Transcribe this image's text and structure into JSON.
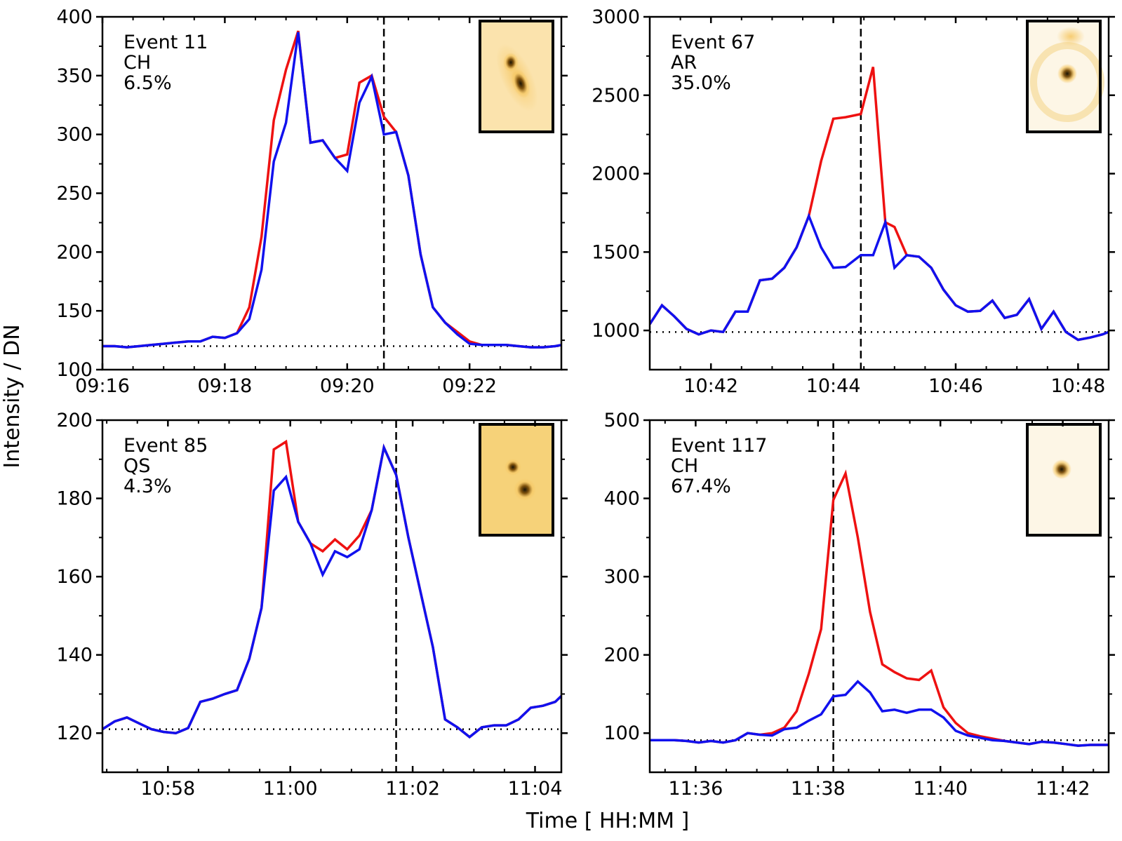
{
  "figure": {
    "ylabel": "Intensity / DN",
    "xlabel": "Time [ HH:MM ]"
  },
  "colors": {
    "red_series": "#ee1111",
    "blue_series": "#1111ee",
    "axis": "#000000",
    "inset_light": "#fdf6e6",
    "inset_mid": "#f6c865",
    "inset_dark": "#1a1204"
  },
  "chart_data": [
    {
      "type": "line",
      "annotation": [
        "Event 11",
        "CH",
        "6.5%"
      ],
      "xlim": [
        0,
        7.5
      ],
      "ylim": [
        100,
        400
      ],
      "xticks": [
        0,
        2,
        4,
        6
      ],
      "xtick_labels": [
        "09:16",
        "09:18",
        "09:20",
        "09:22"
      ],
      "yticks": [
        100,
        150,
        200,
        250,
        300,
        350,
        400
      ],
      "ytick_labels": [
        "100",
        "150",
        "200",
        "250",
        "300",
        "350",
        "400"
      ],
      "vline_x": 4.6,
      "baseline_y": 120,
      "inset": "elongated-double-blob",
      "series": [
        {
          "name": "red",
          "color": "#ee1111",
          "x": [
            0,
            0.2,
            0.4,
            0.6,
            0.8,
            1.0,
            1.2,
            1.4,
            1.6,
            1.8,
            2.0,
            2.2,
            2.4,
            2.6,
            2.8,
            3.0,
            3.2,
            3.4,
            3.6,
            3.8,
            4.0,
            4.2,
            4.4,
            4.6,
            4.8,
            5.0,
            5.2,
            5.4,
            5.6,
            5.8,
            6.0,
            6.2,
            6.4,
            6.6,
            6.8,
            7.0,
            7.2,
            7.4,
            7.5
          ],
          "y": [
            120,
            120,
            119,
            120,
            121,
            122,
            123,
            124,
            124,
            128,
            127,
            131,
            153,
            213,
            312,
            355,
            388,
            293,
            295,
            280,
            283,
            344,
            350,
            315,
            302,
            265,
            198,
            153,
            140,
            132,
            124,
            121,
            121,
            121,
            120,
            119,
            119,
            120,
            121
          ]
        },
        {
          "name": "blue",
          "color": "#1111ee",
          "x": [
            0,
            0.2,
            0.4,
            0.6,
            0.8,
            1.0,
            1.2,
            1.4,
            1.6,
            1.8,
            2.0,
            2.2,
            2.4,
            2.6,
            2.8,
            3.0,
            3.2,
            3.4,
            3.6,
            3.8,
            4.0,
            4.2,
            4.4,
            4.6,
            4.8,
            5.0,
            5.2,
            5.4,
            5.6,
            5.8,
            6.0,
            6.2,
            6.4,
            6.6,
            6.8,
            7.0,
            7.2,
            7.4,
            7.5
          ],
          "y": [
            120,
            120,
            119,
            120,
            121,
            122,
            123,
            124,
            124,
            128,
            127,
            131,
            143,
            185,
            277,
            310,
            387,
            293,
            295,
            280,
            269,
            327,
            349,
            300,
            302,
            265,
            198,
            153,
            140,
            130,
            122,
            121,
            121,
            121,
            120,
            119,
            119,
            120,
            121
          ]
        }
      ]
    },
    {
      "type": "line",
      "annotation": [
        "Event 67",
        "AR",
        "35.0%"
      ],
      "xlim": [
        0,
        7.5
      ],
      "ylim": [
        750,
        3000
      ],
      "xticks": [
        1,
        3,
        5,
        7
      ],
      "xtick_labels": [
        "10:42",
        "10:44",
        "10:46",
        "10:48"
      ],
      "yticks": [
        1000,
        1500,
        2000,
        2500,
        3000
      ],
      "ytick_labels": [
        "1000",
        "1500",
        "2000",
        "2500",
        "3000"
      ],
      "vline_x": 3.45,
      "baseline_y": 990,
      "inset": "single-dot-faint-halo",
      "series": [
        {
          "name": "red",
          "color": "#ee1111",
          "x": [
            0,
            0.2,
            0.4,
            0.6,
            0.8,
            1.0,
            1.2,
            1.4,
            1.6,
            1.8,
            2.0,
            2.2,
            2.4,
            2.6,
            2.8,
            3.0,
            3.2,
            3.45,
            3.65,
            3.85,
            4.0,
            4.2,
            4.4,
            4.6,
            4.8,
            5.0,
            5.2,
            5.4,
            5.6,
            5.8,
            6.0,
            6.2,
            6.4,
            6.6,
            6.8,
            7.0,
            7.2,
            7.4,
            7.5
          ],
          "y": [
            1040,
            1160,
            1090,
            1010,
            975,
            1000,
            990,
            1120,
            1120,
            1320,
            1330,
            1400,
            1530,
            1730,
            2080,
            2350,
            2360,
            2380,
            2680,
            1690,
            1660,
            1480,
            1470,
            1400,
            1260,
            1160,
            1120,
            1125,
            1190,
            1080,
            1100,
            1200,
            1010,
            1120,
            990,
            940,
            955,
            975,
            990
          ]
        },
        {
          "name": "blue",
          "color": "#1111ee",
          "x": [
            0,
            0.2,
            0.4,
            0.6,
            0.8,
            1.0,
            1.2,
            1.4,
            1.6,
            1.8,
            2.0,
            2.2,
            2.4,
            2.6,
            2.8,
            3.0,
            3.2,
            3.45,
            3.65,
            3.85,
            4.0,
            4.2,
            4.4,
            4.6,
            4.8,
            5.0,
            5.2,
            5.4,
            5.6,
            5.8,
            6.0,
            6.2,
            6.4,
            6.6,
            6.8,
            7.0,
            7.2,
            7.4,
            7.5
          ],
          "y": [
            1040,
            1160,
            1090,
            1010,
            975,
            1000,
            990,
            1120,
            1120,
            1320,
            1330,
            1400,
            1530,
            1730,
            1530,
            1400,
            1405,
            1480,
            1480,
            1690,
            1400,
            1480,
            1470,
            1400,
            1260,
            1160,
            1120,
            1125,
            1190,
            1080,
            1100,
            1200,
            1010,
            1120,
            990,
            940,
            955,
            975,
            990
          ]
        }
      ]
    },
    {
      "type": "line",
      "annotation": [
        "Event 85",
        "QS",
        "4.3%"
      ],
      "xlim": [
        0,
        7.5
      ],
      "ylim": [
        110,
        200
      ],
      "xticks": [
        1.07,
        3.07,
        5.07,
        7.07
      ],
      "xtick_labels": [
        "10:58",
        "11:00",
        "11:02",
        "11:04"
      ],
      "yticks": [
        120,
        140,
        160,
        180,
        200
      ],
      "ytick_labels": [
        "120",
        "140",
        "160",
        "180",
        "200"
      ],
      "vline_x": 4.8,
      "baseline_y": 121,
      "inset": "two-blobs-speckled",
      "series": [
        {
          "name": "red",
          "color": "#ee1111",
          "x": [
            0,
            0.2,
            0.4,
            0.6,
            0.8,
            1.0,
            1.2,
            1.4,
            1.6,
            1.8,
            2.0,
            2.2,
            2.4,
            2.6,
            2.8,
            3.0,
            3.2,
            3.4,
            3.6,
            3.8,
            4.0,
            4.2,
            4.4,
            4.6,
            4.8,
            5.0,
            5.2,
            5.4,
            5.6,
            5.8,
            6.0,
            6.2,
            6.4,
            6.6,
            6.8,
            7.0,
            7.2,
            7.4,
            7.5
          ],
          "y": [
            121,
            123,
            124,
            122.5,
            121,
            120.3,
            120,
            121.3,
            128,
            128.8,
            130,
            131,
            139,
            152,
            192.5,
            194.5,
            174,
            168.5,
            166.5,
            169.5,
            167,
            170.5,
            177,
            193,
            186,
            170,
            156,
            142,
            123.5,
            121.5,
            119,
            121.5,
            122,
            122,
            123.5,
            126.5,
            127,
            128,
            129.5
          ]
        },
        {
          "name": "blue",
          "color": "#1111ee",
          "x": [
            0,
            0.2,
            0.4,
            0.6,
            0.8,
            1.0,
            1.2,
            1.4,
            1.6,
            1.8,
            2.0,
            2.2,
            2.4,
            2.6,
            2.8,
            3.0,
            3.2,
            3.4,
            3.6,
            3.8,
            4.0,
            4.2,
            4.4,
            4.6,
            4.8,
            5.0,
            5.2,
            5.4,
            5.6,
            5.8,
            6.0,
            6.2,
            6.4,
            6.6,
            6.8,
            7.0,
            7.2,
            7.4,
            7.5
          ],
          "y": [
            121,
            123,
            124,
            122.5,
            121,
            120.3,
            120,
            121.3,
            128,
            128.8,
            130,
            131,
            139,
            152,
            182,
            185.5,
            174,
            168.5,
            160.5,
            166.5,
            165,
            167,
            177,
            193,
            186,
            170,
            156,
            142,
            123.5,
            121.5,
            119,
            121.5,
            122,
            122,
            123.5,
            126.5,
            127,
            128,
            129.5
          ]
        }
      ]
    },
    {
      "type": "line",
      "annotation": [
        "Event 117",
        "CH",
        "67.4%"
      ],
      "xlim": [
        0,
        7.5
      ],
      "ylim": [
        50,
        500
      ],
      "xticks": [
        0.75,
        2.75,
        4.75,
        6.75
      ],
      "xtick_labels": [
        "11:36",
        "11:38",
        "11:40",
        "11:42"
      ],
      "yticks": [
        100,
        200,
        300,
        400,
        500
      ],
      "ytick_labels": [
        "100",
        "200",
        "300",
        "400",
        "500"
      ],
      "vline_x": 3.0,
      "baseline_y": 91,
      "inset": "single-dot",
      "series": [
        {
          "name": "red",
          "color": "#ee1111",
          "x": [
            0,
            0.2,
            0.4,
            0.6,
            0.8,
            1.0,
            1.2,
            1.4,
            1.6,
            1.8,
            2.0,
            2.2,
            2.4,
            2.6,
            2.8,
            3.0,
            3.2,
            3.4,
            3.6,
            3.8,
            4.0,
            4.2,
            4.4,
            4.6,
            4.8,
            5.0,
            5.2,
            5.4,
            5.6,
            5.8,
            6.0,
            6.2,
            6.4,
            6.6,
            6.8,
            7.0,
            7.2,
            7.4,
            7.5
          ],
          "y": [
            91,
            91,
            91,
            90,
            88,
            90,
            88,
            91,
            100,
            98,
            100,
            107,
            128,
            176,
            233,
            398,
            432,
            350,
            255,
            188,
            178,
            170,
            168,
            180,
            133,
            113,
            100,
            96,
            93,
            90,
            88,
            86,
            89,
            88,
            86,
            84,
            85,
            85,
            85
          ]
        },
        {
          "name": "blue",
          "color": "#1111ee",
          "x": [
            0,
            0.2,
            0.4,
            0.6,
            0.8,
            1.0,
            1.2,
            1.4,
            1.6,
            1.8,
            2.0,
            2.2,
            2.4,
            2.6,
            2.8,
            3.0,
            3.2,
            3.4,
            3.6,
            3.8,
            4.0,
            4.2,
            4.4,
            4.6,
            4.8,
            5.0,
            5.2,
            5.4,
            5.6,
            5.8,
            6.0,
            6.2,
            6.4,
            6.6,
            6.8,
            7.0,
            7.2,
            7.4,
            7.5
          ],
          "y": [
            91,
            91,
            91,
            90,
            88,
            90,
            88,
            91,
            100,
            98,
            97,
            105,
            107,
            116,
            124,
            147,
            149,
            166,
            152,
            128,
            130,
            126,
            130,
            130,
            120,
            103,
            97,
            94,
            91,
            90,
            88,
            86,
            89,
            88,
            86,
            84,
            85,
            85,
            85
          ]
        }
      ]
    }
  ]
}
